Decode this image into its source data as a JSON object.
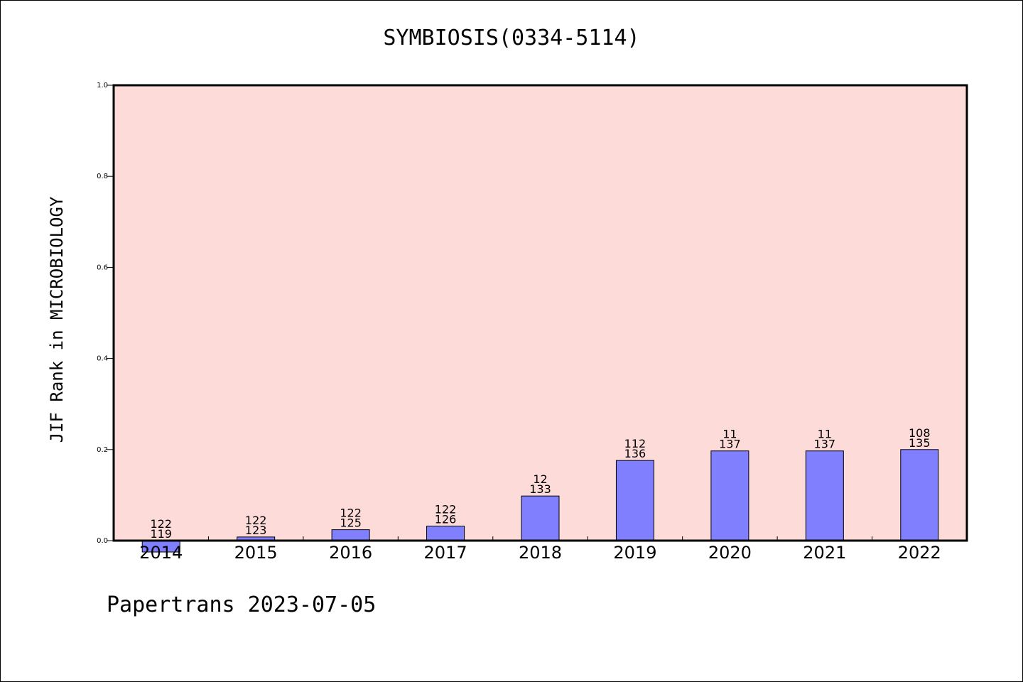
{
  "chart_data": {
    "type": "bar",
    "title": "SYMBIOSIS(0334-5114)",
    "ylabel": "JIF Rank in MICROBIOLOGY",
    "xlabel": "",
    "ylim": [
      0,
      1.0
    ],
    "yticks": [
      "0.0",
      "0.2",
      "0.4",
      "0.6",
      "0.8",
      "1.0"
    ],
    "categories": [
      "2014",
      "2015",
      "2016",
      "2017",
      "2018",
      "2019",
      "2020",
      "2021",
      "2022"
    ],
    "values": [
      -0.025,
      0.008,
      0.024,
      0.032,
      0.098,
      0.176,
      0.197,
      0.197,
      0.2
    ],
    "labels": [
      [
        "122",
        "119"
      ],
      [
        "122",
        "123"
      ],
      [
        "122",
        "125"
      ],
      [
        "122",
        "126"
      ],
      [
        "12",
        "133"
      ],
      [
        "112",
        "136"
      ],
      [
        "11",
        "137"
      ],
      [
        "11",
        "137"
      ],
      [
        "108",
        "135"
      ]
    ],
    "plot_background": "#fddbd8",
    "bar_color": "#8080ff",
    "grid": false
  },
  "footer": "Papertrans 2023-07-05"
}
